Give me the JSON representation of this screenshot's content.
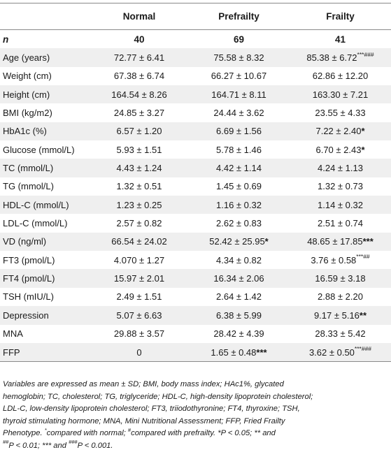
{
  "table": {
    "headers": [
      "",
      "Normal",
      "Prefrailty",
      "Frailty"
    ],
    "n_row": {
      "label": "n",
      "values": [
        "40",
        "69",
        "41"
      ]
    },
    "rows": [
      {
        "label": "Age (years)",
        "cells": [
          {
            "text": "72.77 ± 6.41"
          },
          {
            "text": "75.58 ± 8.32"
          },
          {
            "text": "85.38 ± 6.72",
            "sup": "***###"
          }
        ]
      },
      {
        "label": "Weight (cm)",
        "cells": [
          {
            "text": "67.38 ± 6.74"
          },
          {
            "text": "66.27 ± 10.67"
          },
          {
            "text": "62.86 ± 12.20"
          }
        ]
      },
      {
        "label": "Height (cm)",
        "cells": [
          {
            "text": "164.54 ± 8.26"
          },
          {
            "text": "164.71 ± 8.11"
          },
          {
            "text": "163.30 ± 7.21"
          }
        ]
      },
      {
        "label": "BMI (kg/m2)",
        "cells": [
          {
            "text": "24.85 ± 3.27"
          },
          {
            "text": "24.44 ± 3.62"
          },
          {
            "text": "23.55 ± 4.33"
          }
        ]
      },
      {
        "label": "HbA1c (%)",
        "cells": [
          {
            "text": "6.57 ± 1.20"
          },
          {
            "text": "6.69 ± 1.56"
          },
          {
            "text": "7.22 ± 2.40",
            "star": "*"
          }
        ]
      },
      {
        "label": "Glucose (mmol/L)",
        "cells": [
          {
            "text": "5.93 ± 1.51"
          },
          {
            "text": "5.78 ± 1.46"
          },
          {
            "text": "6.70 ± 2.43",
            "star": "*"
          }
        ]
      },
      {
        "label": "TC (mmol/L)",
        "cells": [
          {
            "text": "4.43 ± 1.24"
          },
          {
            "text": "4.42 ± 1.14"
          },
          {
            "text": "4.24 ± 1.13"
          }
        ]
      },
      {
        "label": "TG (mmol/L)",
        "cells": [
          {
            "text": "1.32 ± 0.51"
          },
          {
            "text": "1.45 ± 0.69"
          },
          {
            "text": "1.32 ± 0.73"
          }
        ]
      },
      {
        "label": "HDL-C (mmol/L)",
        "cells": [
          {
            "text": "1.23 ± 0.25"
          },
          {
            "text": "1.16 ± 0.32"
          },
          {
            "text": "1.14 ± 0.32"
          }
        ]
      },
      {
        "label": "LDL-C (mmol/L)",
        "cells": [
          {
            "text": "2.57 ± 0.82"
          },
          {
            "text": "2.62 ± 0.83"
          },
          {
            "text": "2.51 ± 0.74"
          }
        ]
      },
      {
        "label": "VD (ng/ml)",
        "cells": [
          {
            "text": "66.54 ± 24.02"
          },
          {
            "text": "52.42 ± 25.95",
            "star": "*"
          },
          {
            "text": "48.65 ± 17.85",
            "star": "***"
          }
        ]
      },
      {
        "label": "FT3 (pmol/L)",
        "cells": [
          {
            "text": "4.070 ± 1.27"
          },
          {
            "text": "4.34 ± 0.82"
          },
          {
            "text": "3.76 ± 0.58",
            "sup": "***##"
          }
        ]
      },
      {
        "label": "FT4 (pmol/L)",
        "cells": [
          {
            "text": "15.97 ± 2.01"
          },
          {
            "text": "16.34 ± 2.06"
          },
          {
            "text": "16.59 ± 3.18"
          }
        ]
      },
      {
        "label": "TSH (mIU/L)",
        "cells": [
          {
            "text": "2.49 ± 1.51"
          },
          {
            "text": "2.64 ± 1.42"
          },
          {
            "text": "2.88 ± 2.20"
          }
        ]
      },
      {
        "label": "Depression",
        "cells": [
          {
            "text": "5.07 ± 6.63"
          },
          {
            "text": "6.38 ± 5.99"
          },
          {
            "text": "9.17 ± 5.16",
            "star": "**"
          }
        ]
      },
      {
        "label": "MNA",
        "cells": [
          {
            "text": "29.88 ± 3.57"
          },
          {
            "text": "28.42 ± 4.39"
          },
          {
            "text": "28.33 ± 5.42"
          }
        ]
      },
      {
        "label": "FFP",
        "cells": [
          {
            "text": "0"
          },
          {
            "text": "1.65 ± 0.48",
            "star": "***"
          },
          {
            "text": "3.62 ± 0.50",
            "sup": "***###"
          }
        ]
      }
    ]
  },
  "footnote": {
    "line1": "Variables are expressed as mean ± SD; BMI, body mass index; HAc1%, glycated",
    "line2": "hemoglobin; TC, cholesterol; TG, triglyceride; HDL-C, high-density lipoprotein cholesterol;",
    "line3": "LDL-C, low-density lipoprotein cholesterol; FT3, triiodothyronine; FT4, thyroxine; TSH,",
    "line4": "thyroid stimulating hormone; MNA, Mini Nutritional Assessment; FFP, Fried Frailty",
    "line5a": "Phenotype. ",
    "sup_a": "*",
    "line5b": "compared with normal; ",
    "sup_b": "#",
    "line5c": "compared with prefrailty. *P < 0.05; ** and",
    "sup_c": "##",
    "line6a": "P < 0.01; *** and ",
    "sup_d": "###",
    "line6b": "P < 0.001."
  },
  "colors": {
    "stripe": "#efefef",
    "rule": "#8a8a8a"
  }
}
